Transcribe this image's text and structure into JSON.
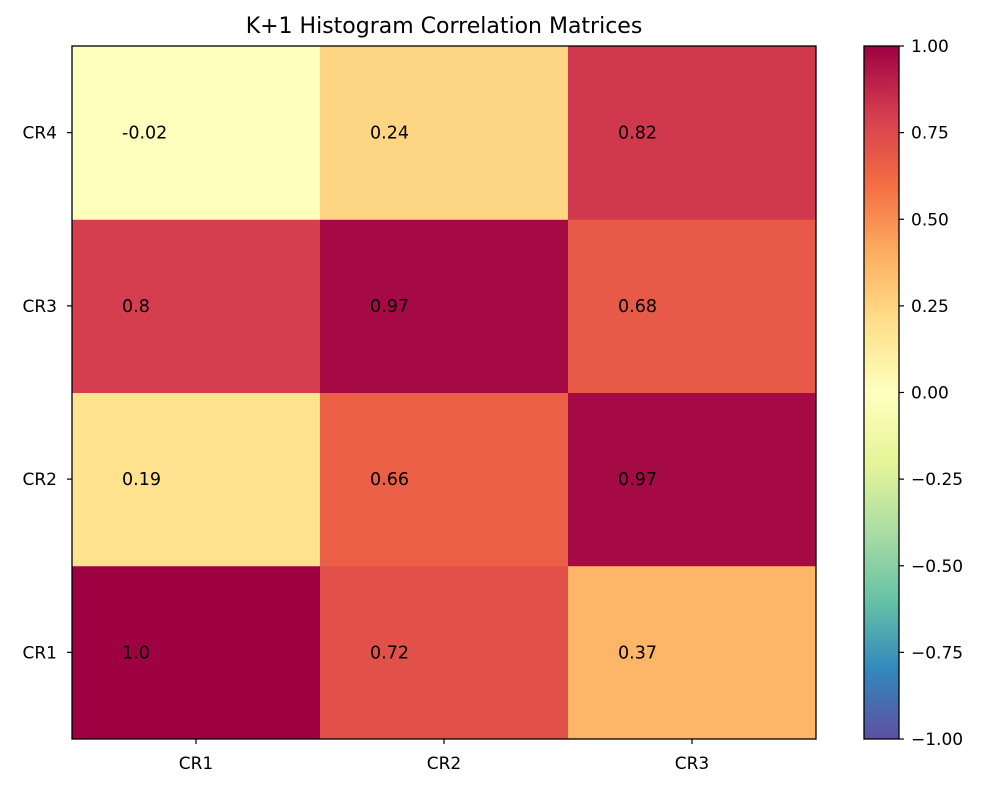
{
  "chart_data": {
    "type": "heatmap",
    "title": "K+1 Histogram Correlation Matrices",
    "x_categories": [
      "CR1",
      "CR2",
      "CR3"
    ],
    "y_categories": [
      "CR1",
      "CR2",
      "CR3",
      "CR4"
    ],
    "values": [
      [
        1.0,
        0.72,
        0.37
      ],
      [
        0.19,
        0.66,
        0.97
      ],
      [
        0.8,
        0.97,
        0.68
      ],
      [
        -0.02,
        0.24,
        0.82
      ]
    ],
    "cell_labels": [
      [
        "1.0",
        "0.72",
        "0.37"
      ],
      [
        "0.19",
        "0.66",
        "0.97"
      ],
      [
        "0.8",
        "0.97",
        "0.68"
      ],
      [
        "-0.02",
        "0.24",
        "0.82"
      ]
    ],
    "colorbar": {
      "colormap": "Spectral_r",
      "range": [
        -1.0,
        1.0
      ],
      "ticks": [
        1.0,
        0.75,
        0.5,
        0.25,
        0.0,
        -0.25,
        -0.5,
        -0.75,
        -1.0
      ],
      "tick_labels": [
        "1.00",
        "0.75",
        "0.50",
        "0.25",
        "0.00",
        "−0.25",
        "−0.50",
        "−0.75",
        "−1.00"
      ]
    },
    "colormap_stops": [
      "#5e4fa2",
      "#3288bd",
      "#66c2a5",
      "#abdda4",
      "#e6f598",
      "#ffffbf",
      "#fee08b",
      "#fdae61",
      "#f46d43",
      "#d53e4f",
      "#9e0142"
    ]
  }
}
